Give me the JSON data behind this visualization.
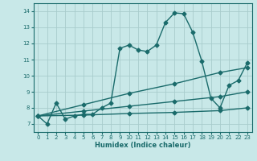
{
  "xlabel": "Humidex (Indice chaleur)",
  "ylabel": "",
  "bg_color": "#c8e8e8",
  "grid_color": "#a8cccc",
  "line_color": "#1a6b6b",
  "xlim": [
    -0.5,
    23.5
  ],
  "ylim": [
    6.5,
    14.5
  ],
  "xticks": [
    0,
    1,
    2,
    3,
    4,
    5,
    6,
    7,
    8,
    9,
    10,
    11,
    12,
    13,
    14,
    15,
    16,
    17,
    18,
    19,
    20,
    21,
    22,
    23
  ],
  "yticks": [
    7,
    8,
    9,
    10,
    11,
    12,
    13,
    14
  ],
  "line1_x": [
    0,
    1,
    2,
    3,
    4,
    5,
    6,
    7,
    8,
    9,
    10,
    11,
    12,
    13,
    14,
    15,
    16,
    17,
    18,
    19,
    20,
    21,
    22,
    23
  ],
  "line1_y": [
    7.5,
    7.0,
    8.3,
    7.3,
    7.5,
    7.6,
    7.6,
    8.0,
    8.3,
    11.7,
    11.9,
    11.6,
    11.5,
    11.9,
    13.3,
    13.9,
    13.85,
    12.7,
    10.9,
    8.6,
    8.0,
    9.4,
    9.7,
    10.8
  ],
  "line2_x": [
    0,
    5,
    10,
    15,
    20,
    23
  ],
  "line2_y": [
    7.5,
    8.2,
    8.9,
    9.5,
    10.2,
    10.5
  ],
  "line3_x": [
    0,
    5,
    10,
    15,
    20,
    23
  ],
  "line3_y": [
    7.5,
    7.8,
    8.1,
    8.4,
    8.7,
    9.0
  ],
  "line4_x": [
    0,
    5,
    10,
    15,
    20,
    23
  ],
  "line4_y": [
    7.5,
    7.55,
    7.65,
    7.72,
    7.83,
    8.0
  ],
  "marker": "D",
  "markersize": 2.5,
  "linewidth": 1.0
}
